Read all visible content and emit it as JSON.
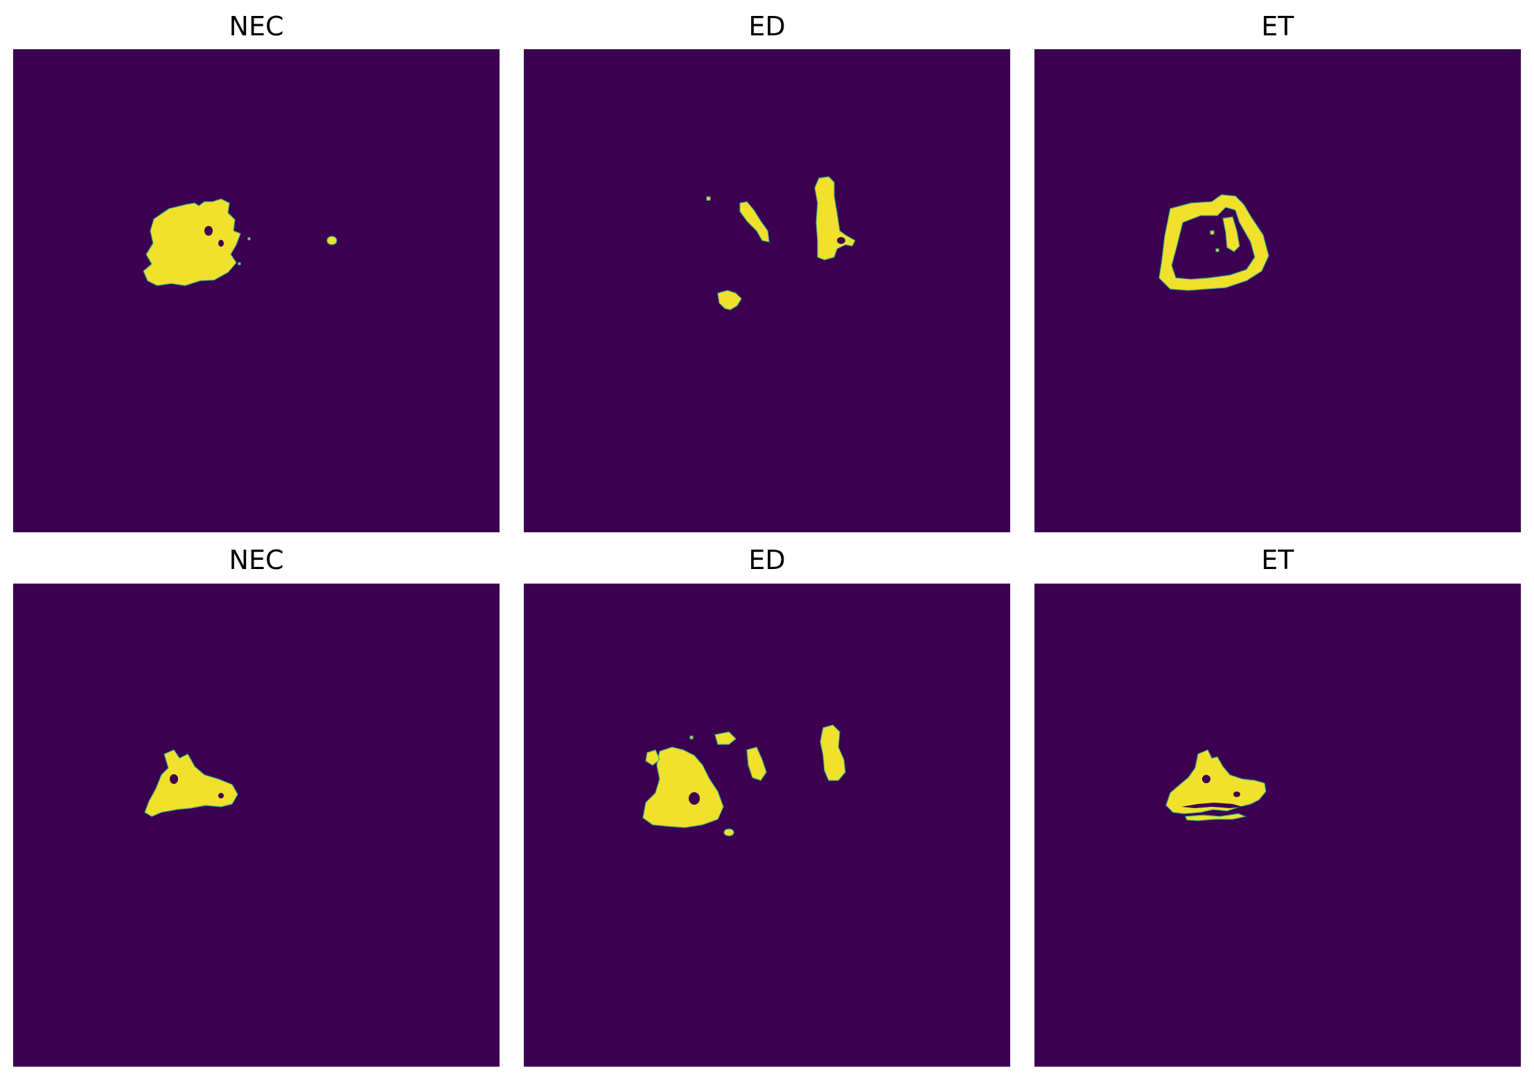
{
  "colors": {
    "background": "#3b0050",
    "foreground": "#f2e12c",
    "edge": "#3fae8a"
  },
  "rows": [
    {
      "panels": [
        {
          "title": "NEC"
        },
        {
          "title": "ED"
        },
        {
          "title": "ET"
        }
      ]
    },
    {
      "panels": [
        {
          "title": "NEC"
        },
        {
          "title": "ED"
        },
        {
          "title": "ET"
        }
      ]
    }
  ]
}
